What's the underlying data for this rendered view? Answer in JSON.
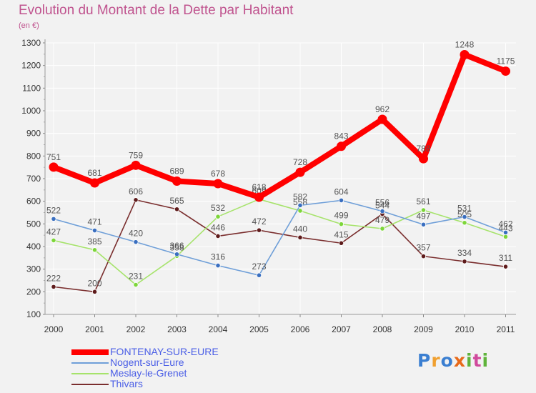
{
  "title": "Evolution du Montant de la Dette par Habitant",
  "unit_label": "(en €)",
  "logo_text": "Proxiti",
  "chart_data": {
    "type": "line",
    "title": "Evolution du Montant de la Dette par Habitant",
    "ylabel": "(en €)",
    "xlabel": "",
    "x": [
      "2000",
      "2001",
      "2002",
      "2003",
      "2004",
      "2005",
      "2006",
      "2007",
      "2008",
      "2009",
      "2010",
      "2011"
    ],
    "ylim": [
      100,
      1300
    ],
    "yticks": [
      "100",
      "200",
      "300",
      "400",
      "500",
      "600",
      "700",
      "800",
      "900",
      "1000",
      "1100",
      "1200",
      "1300"
    ],
    "grid": true,
    "legend_position": "bottom-left",
    "series": [
      {
        "name": "FONTENAY-SUR-EURE",
        "color": "#ff0000",
        "marker": "#ff0000",
        "values": [
          751,
          681,
          759,
          689,
          678,
          618,
          728,
          843,
          962,
          788,
          1248,
          1175
        ]
      },
      {
        "name": "Nogent-sur-Eure",
        "color": "#6f9fd8",
        "marker": "#3a6fc0",
        "values": [
          522,
          471,
          420,
          366,
          316,
          273,
          582,
          604,
          556,
          497,
          531,
          462
        ]
      },
      {
        "name": "Meslay-le-Grenet",
        "color": "#a6e36b",
        "marker": "#7dd63a",
        "values": [
          427,
          385,
          231,
          358,
          532,
          609,
          558,
          499,
          479,
          561,
          505,
          443
        ]
      },
      {
        "name": "Thivars",
        "color": "#7a2e2e",
        "marker": "#5e1b1b",
        "values": [
          222,
          200,
          606,
          565,
          446,
          472,
          440,
          415,
          544,
          357,
          334,
          311
        ]
      }
    ]
  },
  "colors": {
    "title": "#c0548f",
    "axis": "#999999",
    "grid": "#ffffff",
    "plot_background": "#f2f2f2",
    "label_text": "#555555",
    "legend_text": "#4a5ee6"
  },
  "logo_colors": [
    "#3b7fd1",
    "#f0a030",
    "#3b7fd1",
    "#e86a1a",
    "#5fb33b",
    "#d04a9c",
    "#5fb33b"
  ]
}
